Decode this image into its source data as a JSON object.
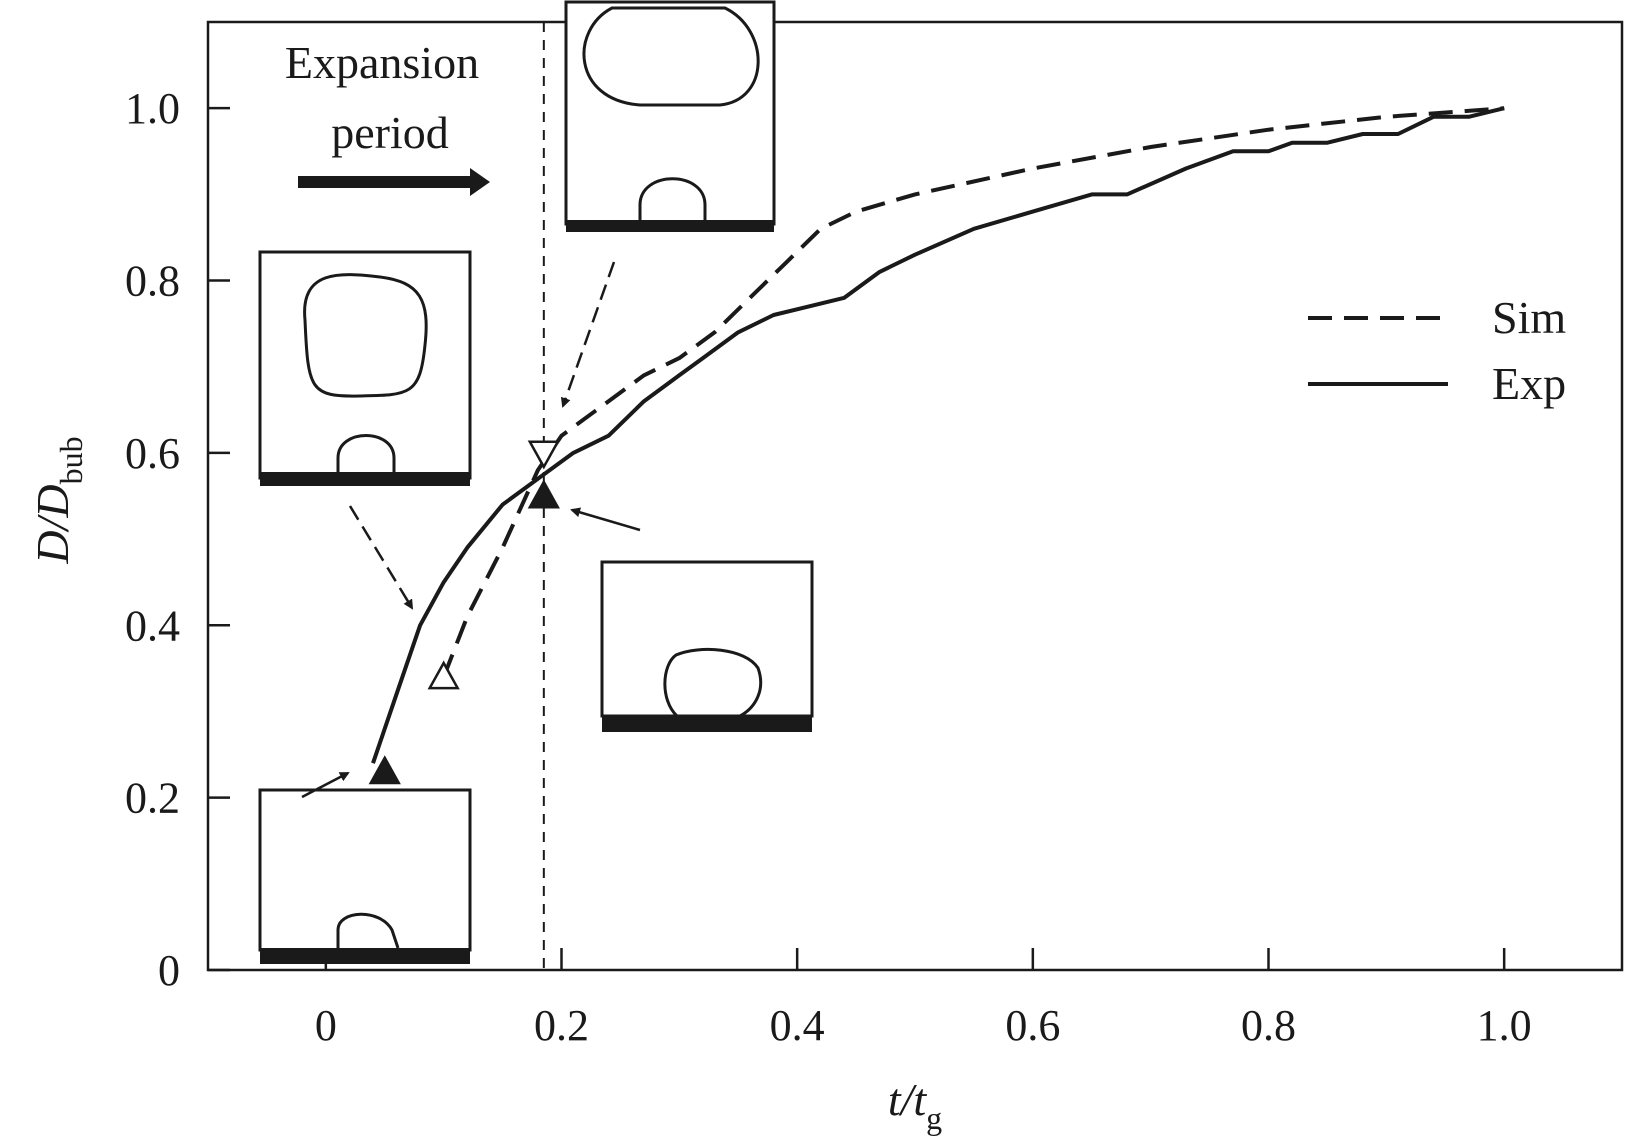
{
  "chart_data": {
    "type": "line",
    "xlabel": {
      "main": "t/t",
      "sub": "g"
    },
    "ylabel": {
      "main": "D/D",
      "sub": "bub"
    },
    "xlim": [
      -0.1,
      1.1
    ],
    "ylim": [
      0,
      1.1
    ],
    "x_ticks": [
      0,
      0.2,
      0.4,
      0.6,
      0.8,
      1.0
    ],
    "x_tick_labels": [
      "0",
      "0.2",
      "0.4",
      "0.6",
      "0.8",
      "1.0"
    ],
    "y_ticks": [
      0,
      0.2,
      0.4,
      0.6,
      0.8,
      1.0
    ],
    "y_tick_labels": [
      "0",
      "0.2",
      "0.4",
      "0.6",
      "0.8",
      "1.0"
    ],
    "grid": false,
    "legend_position": "right",
    "series": [
      {
        "name": "Sim",
        "style": "dashed",
        "x": [
          0.1,
          0.12,
          0.15,
          0.18,
          0.2,
          0.24,
          0.27,
          0.3,
          0.33,
          0.36,
          0.39,
          0.42,
          0.45,
          0.5,
          0.6,
          0.7,
          0.8,
          0.9,
          1.0
        ],
        "y": [
          0.34,
          0.41,
          0.49,
          0.58,
          0.62,
          0.66,
          0.69,
          0.71,
          0.74,
          0.78,
          0.82,
          0.86,
          0.88,
          0.9,
          0.93,
          0.955,
          0.975,
          0.99,
          1.0
        ]
      },
      {
        "name": "Exp",
        "style": "solid",
        "x": [
          0.04,
          0.06,
          0.08,
          0.1,
          0.12,
          0.15,
          0.18,
          0.21,
          0.24,
          0.27,
          0.3,
          0.32,
          0.35,
          0.38,
          0.41,
          0.44,
          0.47,
          0.5,
          0.55,
          0.6,
          0.65,
          0.68,
          0.73,
          0.77,
          0.8,
          0.82,
          0.85,
          0.88,
          0.91,
          0.94,
          0.97,
          1.0
        ],
        "y": [
          0.24,
          0.32,
          0.4,
          0.45,
          0.49,
          0.54,
          0.57,
          0.6,
          0.62,
          0.66,
          0.69,
          0.71,
          0.74,
          0.76,
          0.77,
          0.78,
          0.81,
          0.83,
          0.86,
          0.88,
          0.9,
          0.9,
          0.93,
          0.95,
          0.95,
          0.96,
          0.96,
          0.97,
          0.97,
          0.99,
          0.99,
          1.0
        ]
      }
    ],
    "markers": [
      {
        "shape": "triangle-up",
        "fill": "#1a1a1a",
        "x": 0.05,
        "y": 0.23
      },
      {
        "shape": "triangle-up",
        "fill": "#ffffff",
        "x": 0.1,
        "y": 0.34
      },
      {
        "shape": "triangle-down",
        "fill": "#ffffff",
        "x": 0.185,
        "y": 0.6
      },
      {
        "shape": "triangle-up",
        "fill": "#1a1a1a",
        "x": 0.185,
        "y": 0.55
      }
    ],
    "reference_line": {
      "x": 0.185,
      "style": "dashed"
    },
    "annotation": {
      "line1": "Expansion",
      "line2": "period"
    },
    "colors": {
      "ink": "#1a1a1a",
      "background": "#ffffff"
    }
  }
}
